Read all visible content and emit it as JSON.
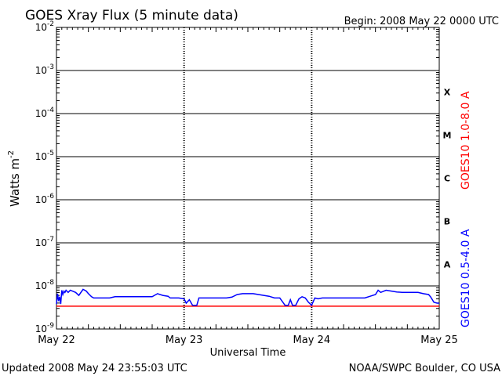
{
  "chart_data": {
    "type": "line",
    "title": "GOES Xray Flux (5 minute data)",
    "begin_label": "Begin:  2008 May 22 0000 UTC",
    "ylabel_main": "Watts m",
    "ylabel_sup": "-2",
    "xlabel": "Universal Time",
    "footer_left": "Updated 2008 May 24 23:55:03 UTC",
    "footer_right": "NOAA/SWPC Boulder, CO USA",
    "y_scale": "log",
    "ylim": [
      -9,
      -2
    ],
    "xlim": [
      0,
      72
    ],
    "y_ticks": [
      {
        "base": "10",
        "exp": "-2",
        "value": -2
      },
      {
        "base": "10",
        "exp": "-3",
        "value": -3
      },
      {
        "base": "10",
        "exp": "-4",
        "value": -4
      },
      {
        "base": "10",
        "exp": "-5",
        "value": -5
      },
      {
        "base": "10",
        "exp": "-6",
        "value": -6
      },
      {
        "base": "10",
        "exp": "-7",
        "value": -7
      },
      {
        "base": "10",
        "exp": "-8",
        "value": -8
      },
      {
        "base": "10",
        "exp": "-9",
        "value": -9
      }
    ],
    "x_ticks": [
      {
        "label": "May 22",
        "value": 0
      },
      {
        "label": "May 23",
        "value": 24
      },
      {
        "label": "May 24",
        "value": 48
      },
      {
        "label": "May 25",
        "value": 72
      }
    ],
    "flare_classes": [
      {
        "label": "X",
        "value": -3.5
      },
      {
        "label": "M",
        "value": -4.5
      },
      {
        "label": "C",
        "value": -5.5
      },
      {
        "label": "B",
        "value": -6.5
      },
      {
        "label": "A",
        "value": -7.5
      }
    ],
    "grid": "horizontal at each decade; dotted verticals at day boundaries",
    "legend_placement": "right, vertical",
    "series": [
      {
        "name": "GOES10 1.0-8.0 A",
        "color": "#ff0000",
        "x": [
          0,
          72
        ],
        "y": [
          -8.47,
          -8.47
        ]
      },
      {
        "name": "GOES10 0.5-4.0 A",
        "color": "#0000ff",
        "x": [
          0,
          0.2,
          0.4,
          0.6,
          0.8,
          1.0,
          1.2,
          1.4,
          1.6,
          1.8,
          2.2,
          2.6,
          3.0,
          3.6,
          4.2,
          5.0,
          5.6,
          6.0,
          6.6,
          7.0,
          7.4,
          8.0,
          8.6,
          9.2,
          10.0,
          11.0,
          12.0,
          13.0,
          14.0,
          15.0,
          16.0,
          17.0,
          18.0,
          19.0,
          20.0,
          21.0,
          21.4,
          22.0,
          22.4,
          23.0,
          24.0,
          24.4,
          25.0,
          25.6,
          26.4,
          26.8,
          27.4,
          28.0,
          29.0,
          30.0,
          31.0,
          32.0,
          33.0,
          34.0,
          35.0,
          36.0,
          37.0,
          38.0,
          39.0,
          40.0,
          41.0,
          42.0,
          42.6,
          43.0,
          43.6,
          44.0,
          44.4,
          45.0,
          45.6,
          46.2,
          46.8,
          47.4,
          48.0,
          48.6,
          49.2,
          50.0,
          51.0,
          52.0,
          53.0,
          54.0,
          55.0,
          56.0,
          57.0,
          58.0,
          59.0,
          60.0,
          60.5,
          61.0,
          62.0,
          63.0,
          64.0,
          65.0,
          66.0,
          67.0,
          68.0,
          69.0,
          70.0,
          70.4,
          71.0,
          71.6,
          72.0
        ],
        "y": [
          -8.42,
          -8.18,
          -8.35,
          -8.25,
          -8.42,
          -8.1,
          -8.2,
          -8.12,
          -8.15,
          -8.1,
          -8.15,
          -8.1,
          -8.12,
          -8.15,
          -8.22,
          -8.08,
          -8.12,
          -8.18,
          -8.25,
          -8.28,
          -8.28,
          -8.28,
          -8.28,
          -8.28,
          -8.28,
          -8.25,
          -8.25,
          -8.25,
          -8.25,
          -8.25,
          -8.25,
          -8.25,
          -8.25,
          -8.18,
          -8.22,
          -8.24,
          -8.28,
          -8.28,
          -8.28,
          -8.28,
          -8.3,
          -8.4,
          -8.32,
          -8.45,
          -8.45,
          -8.28,
          -8.28,
          -8.28,
          -8.28,
          -8.28,
          -8.28,
          -8.28,
          -8.26,
          -8.2,
          -8.18,
          -8.18,
          -8.18,
          -8.2,
          -8.22,
          -8.24,
          -8.28,
          -8.28,
          -8.38,
          -8.45,
          -8.45,
          -8.32,
          -8.45,
          -8.45,
          -8.3,
          -8.25,
          -8.28,
          -8.38,
          -8.45,
          -8.28,
          -8.3,
          -8.28,
          -8.28,
          -8.28,
          -8.28,
          -8.28,
          -8.28,
          -8.28,
          -8.28,
          -8.28,
          -8.24,
          -8.2,
          -8.1,
          -8.15,
          -8.1,
          -8.12,
          -8.14,
          -8.15,
          -8.15,
          -8.15,
          -8.15,
          -8.18,
          -8.2,
          -8.26,
          -8.38,
          -8.4,
          -8.4
        ]
      }
    ]
  }
}
